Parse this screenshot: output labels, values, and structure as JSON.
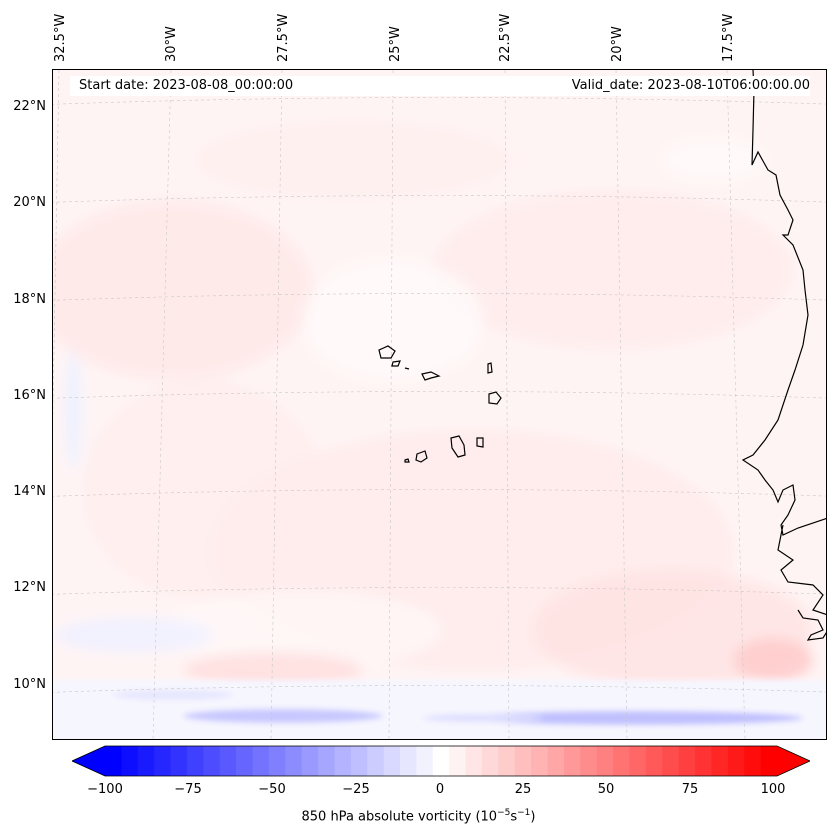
{
  "header": {
    "start_date": "Start date: 2023-08-08_00:00:00",
    "valid_date": "Valid_date: 2023-08-10T06:00:00.00"
  },
  "map": {
    "longitude_labels": [
      "32.5°W",
      "30°W",
      "27.5°W",
      "25°W",
      "22.5°W",
      "20°W",
      "17.5°W"
    ],
    "latitude_labels": [
      "22°N",
      "20°N",
      "18°N",
      "16°N",
      "14°N",
      "12°N",
      "10°N"
    ],
    "gridlines": true,
    "coastline_color": "#000000",
    "field_background_color": "#fff5f5"
  },
  "colorbar": {
    "ticks": [
      "−100",
      "−75",
      "−50",
      "−25",
      "0",
      "25",
      "50",
      "75",
      "100"
    ],
    "min": -100,
    "max": 100,
    "extend": "both",
    "colormap": "bwr",
    "low_color": "#0000ff",
    "mid_color": "#ffffff",
    "high_color": "#ff0000",
    "label": "850 hPa absolute vorticity (10",
    "label_exp1": "−5",
    "label_unit": "s",
    "label_exp2": "−1",
    "label_close": ")"
  }
}
